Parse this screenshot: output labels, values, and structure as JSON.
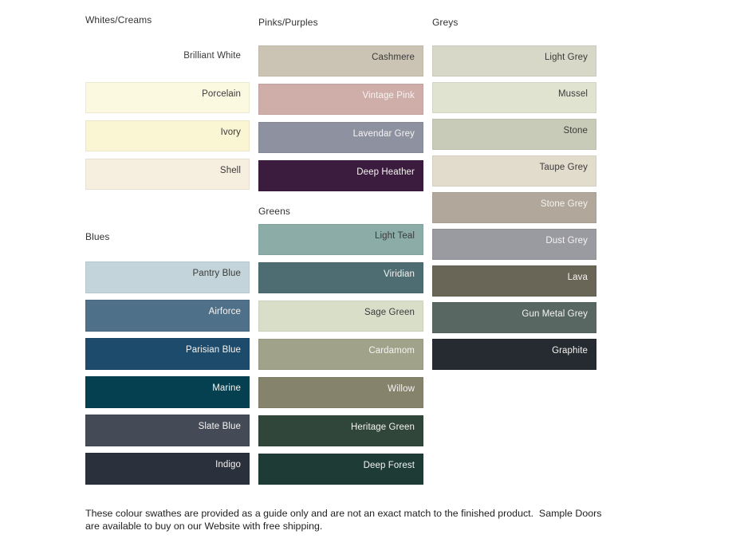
{
  "palette": {
    "swatch_text_dark": "#3a3a3a",
    "swatch_text_light": "#f5f4f2",
    "heading_color": "#333333",
    "page_background": "#ffffff"
  },
  "groups": [
    {
      "heading": "Whites/Creams",
      "swatches": [
        {
          "name": "Brilliant White",
          "background": null,
          "text": "dark"
        },
        {
          "name": "Porcelain",
          "background": "#fcf9e1",
          "text": "dark"
        },
        {
          "name": "Ivory",
          "background": "#faf5d2",
          "text": "dark"
        },
        {
          "name": "Shell",
          "background": "#f6eedf",
          "text": "dark"
        }
      ]
    },
    {
      "heading": "Blues",
      "swatches": [
        {
          "name": "Pantry Blue",
          "background": "#c3d5db",
          "text": "dark"
        },
        {
          "name": "Airforce",
          "background": "#4f7089",
          "text": "light"
        },
        {
          "name": "Parisian Blue",
          "background": "#1d4b6c",
          "text": "light"
        },
        {
          "name": "Marine",
          "background": "#04404f",
          "text": "light"
        },
        {
          "name": "Slate Blue",
          "background": "#444b57",
          "text": "light"
        },
        {
          "name": "Indigo",
          "background": "#2b313c",
          "text": "light"
        }
      ]
    },
    {
      "heading": "Pinks/Purples",
      "swatches": [
        {
          "name": "Cashmere",
          "background": "#cbc4b4",
          "text": "dark"
        },
        {
          "name": "Vintage Pink",
          "background": "#cfada8",
          "text": "light"
        },
        {
          "name": "Lavendar Grey",
          "background": "#8e92a0",
          "text": "light"
        },
        {
          "name": "Deep Heather",
          "background": "#3b1c3e",
          "text": "light"
        }
      ]
    },
    {
      "heading": "Greens",
      "swatches": [
        {
          "name": "Light Teal",
          "background": "#8caca7",
          "text": "dark"
        },
        {
          "name": "Viridian",
          "background": "#4e6d73",
          "text": "light"
        },
        {
          "name": "Sage Green",
          "background": "#d9dec9",
          "text": "dark"
        },
        {
          "name": "Cardamom",
          "background": "#a1a28a",
          "text": "light"
        },
        {
          "name": "Willow",
          "background": "#85836c",
          "text": "light"
        },
        {
          "name": "Heritage Green",
          "background": "#31463a",
          "text": "light"
        },
        {
          "name": "Deep Forest",
          "background": "#1e3b35",
          "text": "light"
        }
      ]
    },
    {
      "heading": "Greys",
      "swatches": [
        {
          "name": "Light Grey",
          "background": "#d8d8c9",
          "text": "dark"
        },
        {
          "name": "Mussel",
          "background": "#e1e3d1",
          "text": "dark"
        },
        {
          "name": "Stone",
          "background": "#c9cbb9",
          "text": "dark"
        },
        {
          "name": "Taupe Grey",
          "background": "#e2dccd",
          "text": "dark"
        },
        {
          "name": "Stone Grey",
          "background": "#b1a89b",
          "text": "light"
        },
        {
          "name": "Dust Grey",
          "background": "#9a9aa1",
          "text": "light"
        },
        {
          "name": "Lava",
          "background": "#696557",
          "text": "light"
        },
        {
          "name": "Gun Metal Grey",
          "background": "#596762",
          "text": "light"
        },
        {
          "name": "Graphite",
          "background": "#262b32",
          "text": "light"
        }
      ]
    }
  ],
  "footer": {
    "text": "These colour swathes are provided as a guide only and are not an exact match to the finished product.  Sample Doors are available to buy on our Website with free shipping."
  }
}
